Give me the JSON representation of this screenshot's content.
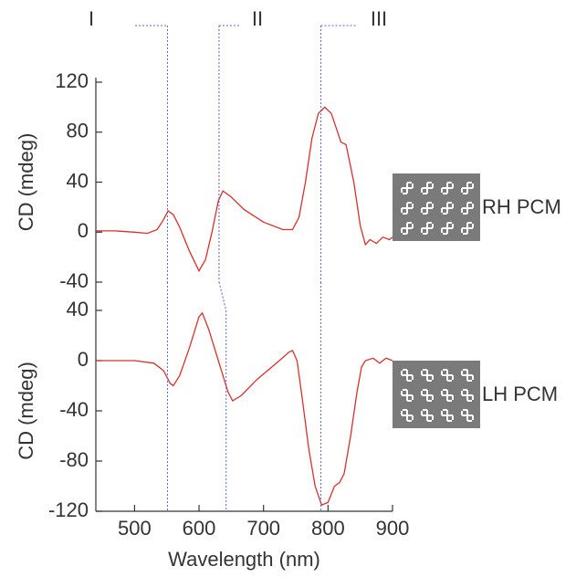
{
  "chart_data": [
    {
      "type": "line",
      "ylabel": "CD (mdeg)",
      "xlim": [
        440,
        900
      ],
      "ylim": [
        -40,
        120
      ],
      "yticks": [
        -40,
        0,
        40,
        80,
        120
      ],
      "annotations": [
        {
          "label": "I",
          "x": [
            551,
            551
          ]
        },
        {
          "label": "II",
          "x": [
            631,
            642
          ]
        },
        {
          "label": "III",
          "x": [
            789,
            789
          ]
        }
      ],
      "x": [
        440,
        470,
        500,
        520,
        535,
        545,
        552,
        560,
        570,
        585,
        600,
        610,
        620,
        630,
        637,
        650,
        670,
        700,
        730,
        745,
        755,
        765,
        775,
        785,
        795,
        805,
        815,
        820,
        828,
        840,
        850,
        858,
        865,
        875,
        885,
        895,
        900
      ],
      "series": [
        {
          "name": "RH PCM",
          "color": "#d9302c",
          "values": [
            1,
            1,
            0,
            -1,
            2,
            10,
            17,
            14,
            4,
            -15,
            -31,
            -22,
            0,
            25,
            33,
            28,
            18,
            8,
            2,
            2,
            12,
            40,
            75,
            95,
            100,
            95,
            80,
            72,
            70,
            40,
            5,
            -10,
            -6,
            -9,
            -4,
            -6,
            -4
          ]
        }
      ]
    },
    {
      "type": "line",
      "xlabel": "Wavelength (nm)",
      "ylabel": "CD (mdeg)",
      "xlim": [
        440,
        900
      ],
      "xticks": [
        500,
        600,
        700,
        800,
        900
      ],
      "ylim": [
        -120,
        40
      ],
      "yticks": [
        -120,
        -80,
        -40,
        0,
        40
      ],
      "x": [
        440,
        500,
        530,
        545,
        555,
        560,
        570,
        585,
        600,
        605,
        615,
        630,
        645,
        652,
        665,
        690,
        720,
        740,
        745,
        752,
        760,
        770,
        780,
        790,
        800,
        810,
        818,
        825,
        835,
        845,
        852,
        858,
        870,
        880,
        890,
        900
      ],
      "series": [
        {
          "name": "LH PCM",
          "color": "#d9302c",
          "values": [
            0,
            0,
            -2,
            -8,
            -18,
            -20,
            -12,
            10,
            35,
            38,
            25,
            0,
            -25,
            -32,
            -28,
            -15,
            -2,
            7,
            8,
            0,
            -30,
            -70,
            -100,
            -115,
            -113,
            -100,
            -97,
            -90,
            -60,
            -25,
            -5,
            0,
            2,
            -2,
            2,
            0
          ]
        }
      ]
    }
  ]
}
